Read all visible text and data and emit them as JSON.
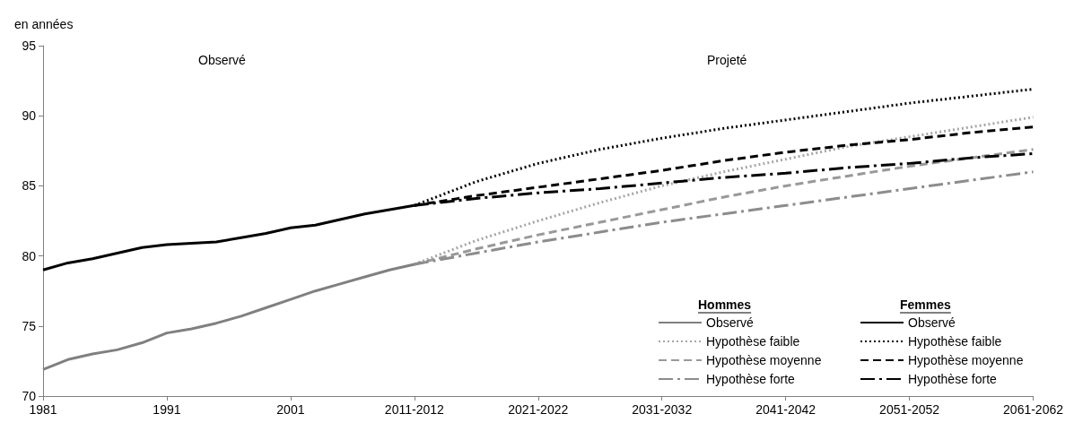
{
  "chart_data": {
    "type": "line",
    "ylabel": "en années",
    "xlim": [
      1981,
      2061
    ],
    "xticks": [
      1981,
      1991,
      2001,
      {
        "value": 2011,
        "label": "2011-2012"
      },
      {
        "value": 2021,
        "label": "2021-2022"
      },
      {
        "value": 2031,
        "label": "2031-2032"
      },
      {
        "value": 2041,
        "label": "2041-2042"
      },
      {
        "value": 2051,
        "label": "2051-2052"
      },
      {
        "value": 2061,
        "label": "2061-2062"
      }
    ],
    "ylim": [
      70,
      95
    ],
    "yticks": [
      70,
      75,
      80,
      85,
      90,
      95
    ],
    "grid": false,
    "legend": "bottom right",
    "marker": "none",
    "annotations": [
      "Observé",
      "Projeté",
      "Hommes",
      "Femmes"
    ],
    "series": [
      {
        "name": "Observé",
        "color": "#808080",
        "line_style": "solid",
        "x": [
          1981,
          1983,
          1985,
          1987,
          1989,
          1991,
          1993,
          1995,
          1997,
          1999,
          2001,
          2003,
          2005,
          2007,
          2009,
          2011
        ],
        "values": [
          71.9,
          72.6,
          73.0,
          73.3,
          73.8,
          74.5,
          74.8,
          75.2,
          75.7,
          76.3,
          76.9,
          77.5,
          78.0,
          78.5,
          79.0,
          79.4
        ]
      },
      {
        "name": "Hypothèse faible",
        "color": "#a6a6a6",
        "line_style": "dotted",
        "x": [
          2011,
          2016,
          2021,
          2026,
          2031,
          2036,
          2041,
          2046,
          2051,
          2056,
          2061
        ],
        "values": [
          79.4,
          81.1,
          82.5,
          83.8,
          85.0,
          86.0,
          86.9,
          87.8,
          88.5,
          89.2,
          89.9
        ]
      },
      {
        "name": "Hypothèse moyenne",
        "color": "#999999",
        "line_style": "dashed",
        "x": [
          2011,
          2016,
          2021,
          2026,
          2031,
          2036,
          2041,
          2046,
          2051,
          2056,
          2061
        ],
        "values": [
          79.4,
          80.5,
          81.5,
          82.4,
          83.3,
          84.2,
          85.0,
          85.7,
          86.4,
          87.0,
          87.6
        ]
      },
      {
        "name": "Hypothèse forte",
        "color": "#8c8c8c",
        "line_style": "dashdot",
        "x": [
          2011,
          2016,
          2021,
          2026,
          2031,
          2036,
          2041,
          2046,
          2051,
          2056,
          2061
        ],
        "values": [
          79.4,
          80.2,
          81.0,
          81.7,
          82.4,
          83.0,
          83.6,
          84.2,
          84.8,
          85.4,
          86.0
        ]
      },
      {
        "name": "Observé",
        "color": "#000000",
        "line_style": "solid",
        "x": [
          1981,
          1983,
          1985,
          1987,
          1989,
          1991,
          1993,
          1995,
          1997,
          1999,
          2001,
          2003,
          2005,
          2007,
          2009,
          2011
        ],
        "values": [
          79.0,
          79.5,
          79.8,
          80.2,
          80.6,
          80.8,
          80.9,
          81.0,
          81.3,
          81.6,
          82.0,
          82.2,
          82.6,
          83.0,
          83.3,
          83.6
        ]
      },
      {
        "name": "Hypothèse faible",
        "color": "#000000",
        "line_style": "dotted",
        "x": [
          2011,
          2016,
          2021,
          2026,
          2031,
          2036,
          2041,
          2046,
          2051,
          2056,
          2061
        ],
        "values": [
          83.6,
          85.3,
          86.6,
          87.6,
          88.4,
          89.1,
          89.7,
          90.3,
          90.9,
          91.4,
          91.9
        ]
      },
      {
        "name": "Hypothèse moyenne",
        "color": "#000000",
        "line_style": "dashed",
        "x": [
          2011,
          2016,
          2021,
          2026,
          2031,
          2036,
          2041,
          2046,
          2051,
          2056,
          2061
        ],
        "values": [
          83.6,
          84.3,
          84.9,
          85.5,
          86.1,
          86.8,
          87.4,
          87.9,
          88.3,
          88.8,
          89.2
        ]
      },
      {
        "name": "Hypothèse forte",
        "color": "#000000",
        "line_style": "dashdot",
        "x": [
          2011,
          2016,
          2021,
          2026,
          2031,
          2036,
          2041,
          2046,
          2051,
          2056,
          2061
        ],
        "values": [
          83.6,
          84.1,
          84.5,
          84.8,
          85.2,
          85.6,
          85.9,
          86.3,
          86.6,
          87.0,
          87.3
        ]
      }
    ]
  }
}
